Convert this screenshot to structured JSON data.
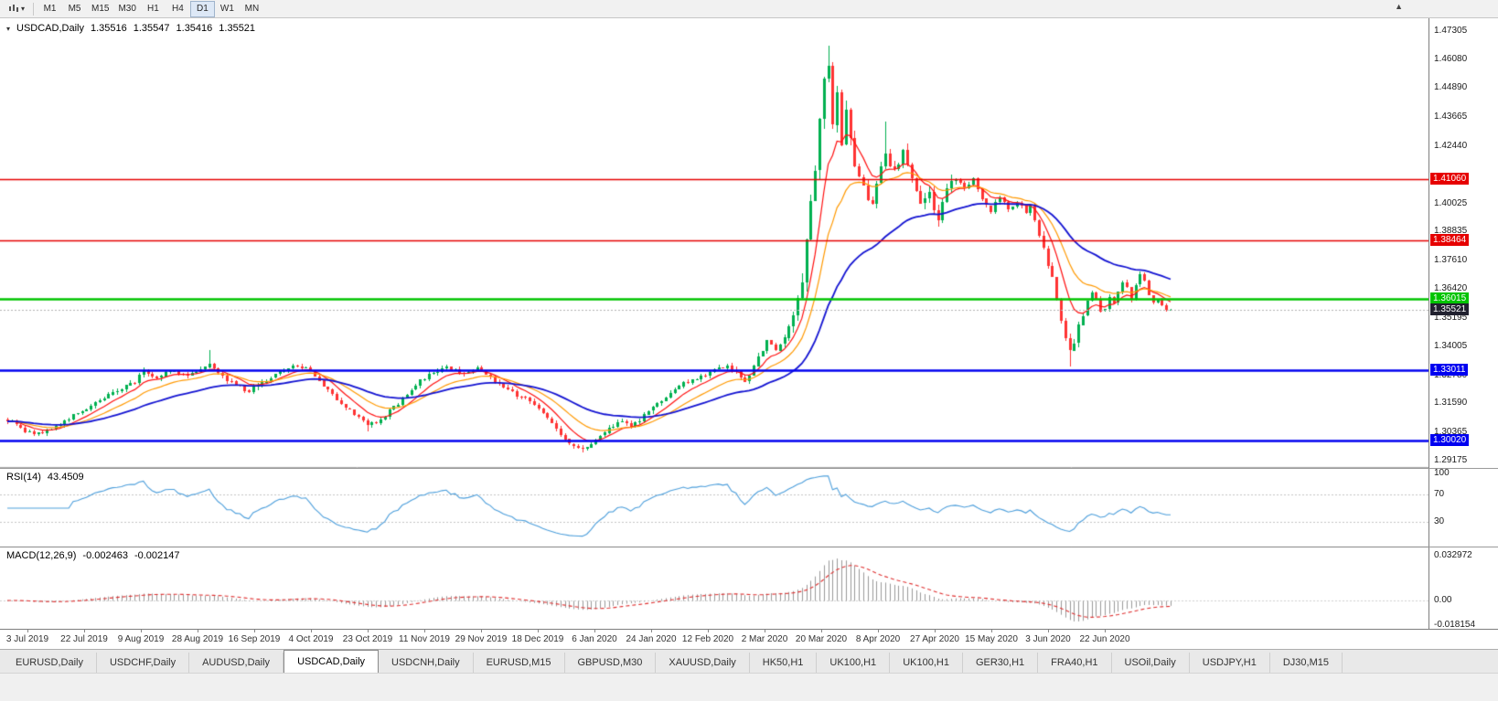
{
  "icons": {
    "timeframe_dropdown": "▾",
    "symbol_dropdown": "▾",
    "chart_shift_marker": "▲"
  },
  "toolbar": {
    "timeframes": [
      "M1",
      "M5",
      "M15",
      "M30",
      "H1",
      "H4",
      "D1",
      "W1",
      "MN"
    ],
    "active_timeframe": "D1"
  },
  "header": {
    "symbol_period": "USDCAD,Daily",
    "open": "1.35516",
    "high": "1.35547",
    "low": "1.35416",
    "close": "1.35521"
  },
  "indicators": {
    "rsi": {
      "label": "RSI(14)",
      "value": "43.4509",
      "axis_ticks": [
        100,
        70,
        30
      ],
      "levels": [
        70,
        30
      ],
      "color": "#4d9fdc"
    },
    "macd": {
      "label": "MACD(12,26,9)",
      "value": "-0.002463",
      "signal_value": "-0.002147",
      "axis_ticks": [
        {
          "v": 0.032972,
          "label": "0.032972"
        },
        {
          "v": 0,
          "label": "0.00"
        },
        {
          "v": -0.018154,
          "label": "-0.018154"
        }
      ],
      "histogram_color": "#9a9a9a",
      "signal_color": "#e03030"
    }
  },
  "chart_data": {
    "type": "candlestick",
    "symbol": "USDCAD",
    "timeframe": "Daily",
    "price_range": {
      "min": 1.2895,
      "max": 1.4775
    },
    "y_ticks": [
      1.47305,
      1.4608,
      1.4489,
      1.43665,
      1.4244,
      1.40025,
      1.38835,
      1.3761,
      1.3642,
      1.35195,
      1.34005,
      1.3278,
      1.3159,
      1.30365,
      1.29175
    ],
    "hlines": [
      {
        "value": 1.4106,
        "label": "1.41060",
        "color": "#e60000",
        "width": 1.5
      },
      {
        "value": 1.38464,
        "label": "1.38464",
        "color": "#e60000",
        "width": 1.5
      },
      {
        "value": 1.36015,
        "label": "1.36015",
        "color": "#00c400",
        "width": 2.4
      },
      {
        "value": 1.33011,
        "label": "1.33011",
        "color": "#0000f0",
        "width": 2.4
      },
      {
        "value": 1.3002,
        "label": "1.30020",
        "color": "#0000f0",
        "width": 2.4
      }
    ],
    "current_price": {
      "value": 1.35521,
      "label": "1.35521",
      "badge_color": "#21212f",
      "line_color": "#b4b4b4"
    },
    "x_ticks": [
      "3 Jul 2019",
      "22 Jul 2019",
      "9 Aug 2019",
      "28 Aug 2019",
      "16 Sep 2019",
      "4 Oct 2019",
      "23 Oct 2019",
      "11 Nov 2019",
      "29 Nov 2019",
      "18 Dec 2019",
      "6 Jan 2020",
      "24 Jan 2020",
      "12 Feb 2020",
      "2 Mar 2020",
      "20 Mar 2020",
      "8 Apr 2020",
      "27 Apr 2020",
      "15 May 2020",
      "3 Jun 2020",
      "22 Jun 2020"
    ],
    "candles": {
      "count": 266,
      "up_color": "#00b050",
      "down_color": "#ff3333",
      "close_path": [
        [
          0,
          1.309
        ],
        [
          4,
          1.3042
        ],
        [
          8,
          1.303
        ],
        [
          12,
          1.3072
        ],
        [
          16,
          1.3118
        ],
        [
          20,
          1.316
        ],
        [
          24,
          1.3205
        ],
        [
          29,
          1.3252
        ],
        [
          31,
          1.3298
        ],
        [
          34,
          1.3268
        ],
        [
          37,
          1.3302
        ],
        [
          40,
          1.3278
        ],
        [
          43,
          1.3295
        ],
        [
          46,
          1.3332
        ],
        [
          50,
          1.3262
        ],
        [
          55,
          1.3208
        ],
        [
          58,
          1.3248
        ],
        [
          62,
          1.329
        ],
        [
          66,
          1.3322
        ],
        [
          69,
          1.3298
        ],
        [
          72,
          1.3232
        ],
        [
          76,
          1.3162
        ],
        [
          79,
          1.3112
        ],
        [
          82,
          1.3068
        ],
        [
          85,
          1.3092
        ],
        [
          88,
          1.3142
        ],
        [
          91,
          1.32
        ],
        [
          94,
          1.3252
        ],
        [
          97,
          1.329
        ],
        [
          100,
          1.3312
        ],
        [
          104,
          1.3282
        ],
        [
          107,
          1.3302
        ],
        [
          110,
          1.3272
        ],
        [
          113,
          1.3232
        ],
        [
          116,
          1.3192
        ],
        [
          119,
          1.3172
        ],
        [
          122,
          1.3122
        ],
        [
          125,
          1.3052
        ],
        [
          128,
          1.2986
        ],
        [
          131,
          1.2962
        ],
        [
          134,
          1.3012
        ],
        [
          137,
          1.3056
        ],
        [
          140,
          1.3082
        ],
        [
          142,
          1.3058
        ],
        [
          145,
          1.3106
        ],
        [
          148,
          1.3156
        ],
        [
          151,
          1.3206
        ],
        [
          154,
          1.3246
        ],
        [
          158,
          1.3272
        ],
        [
          161,
          1.3302
        ],
        [
          164,
          1.3322
        ],
        [
          166,
          1.3292
        ],
        [
          168,
          1.3248
        ],
        [
          170,
          1.3312
        ],
        [
          171,
          1.3352
        ],
        [
          173,
          1.3422
        ],
        [
          175,
          1.3382
        ],
        [
          177,
          1.3432
        ],
        [
          179,
          1.3548
        ],
        [
          181,
          1.3682
        ],
        [
          182,
          1.3852
        ],
        [
          183,
          1.4012
        ],
        [
          184,
          1.4152
        ],
        [
          185,
          1.4332
        ],
        [
          186,
          1.4512
        ],
        [
          187,
          1.4582
        ],
        [
          188,
          1.4352
        ],
        [
          189,
          1.4452
        ],
        [
          190,
          1.4232
        ],
        [
          191,
          1.4402
        ],
        [
          192,
          1.4302
        ],
        [
          193,
          1.4152
        ],
        [
          195,
          1.4062
        ],
        [
          197,
          1.3992
        ],
        [
          198,
          1.4092
        ],
        [
          200,
          1.4212
        ],
        [
          202,
          1.4132
        ],
        [
          204,
          1.4232
        ],
        [
          206,
          1.4102
        ],
        [
          208,
          1.4012
        ],
        [
          210,
          1.4032
        ],
        [
          212,
          1.3932
        ],
        [
          214,
          1.4052
        ],
        [
          216,
          1.4112
        ],
        [
          218,
          1.4062
        ],
        [
          220,
          1.4112
        ],
        [
          222,
          1.4022
        ],
        [
          224,
          1.3972
        ],
        [
          226,
          1.4032
        ],
        [
          228,
          1.3972
        ],
        [
          230,
          1.4012
        ],
        [
          232,
          1.3962
        ],
        [
          233,
          1.4002
        ],
        [
          234,
          1.3932
        ],
        [
          235,
          1.3872
        ],
        [
          236,
          1.3802
        ],
        [
          237,
          1.3752
        ],
        [
          238,
          1.3692
        ],
        [
          239,
          1.3602
        ],
        [
          240,
          1.3512
        ],
        [
          241,
          1.3422
        ],
        [
          242,
          1.3372
        ],
        [
          243,
          1.3422
        ],
        [
          244,
          1.3482
        ],
        [
          245,
          1.3542
        ],
        [
          246,
          1.3582
        ],
        [
          247,
          1.3622
        ],
        [
          248,
          1.3602
        ],
        [
          249,
          1.3542
        ],
        [
          250,
          1.3562
        ],
        [
          251,
          1.3602
        ],
        [
          252,
          1.3582
        ],
        [
          253,
          1.3622
        ],
        [
          254,
          1.3662
        ],
        [
          255,
          1.3642
        ],
        [
          256,
          1.3602
        ],
        [
          257,
          1.3652
        ],
        [
          258,
          1.3702
        ],
        [
          259,
          1.3672
        ],
        [
          260,
          1.3622
        ],
        [
          261,
          1.3582
        ],
        [
          262,
          1.3602
        ],
        [
          263,
          1.3572
        ],
        [
          264,
          1.3558
        ],
        [
          265,
          1.35521
        ]
      ],
      "key_extremes": [
        {
          "i": 46,
          "h": 1.3385
        },
        {
          "i": 82,
          "l": 1.3042
        },
        {
          "i": 131,
          "l": 1.2951
        },
        {
          "i": 187,
          "h": 1.4669
        },
        {
          "i": 200,
          "h": 1.4348
        },
        {
          "i": 242,
          "l": 1.3315
        },
        {
          "i": 258,
          "h": 1.3715
        }
      ]
    },
    "moving_averages": [
      {
        "name": "ma-fast",
        "period": 8,
        "color": "#ff1010",
        "width": 1.2
      },
      {
        "name": "ma-medium",
        "period": 17,
        "color": "#ff9900",
        "width": 1.2
      },
      {
        "name": "ma-slow",
        "period": 40,
        "color": "#1414d2",
        "width": 1.8
      }
    ]
  },
  "tabbar": {
    "tabs": [
      "EURUSD,Daily",
      "USDCHF,Daily",
      "AUDUSD,Daily",
      "USDCAD,Daily",
      "USDCNH,Daily",
      "EURUSD,M15",
      "GBPUSD,M30",
      "XAUUSD,Daily",
      "HK50,H1",
      "UK100,H1",
      "UK100,H1",
      "GER30,H1",
      "FRA40,H1",
      "USOil,Daily",
      "USDJPY,H1",
      "DJ30,M15"
    ],
    "active_index": 3
  }
}
